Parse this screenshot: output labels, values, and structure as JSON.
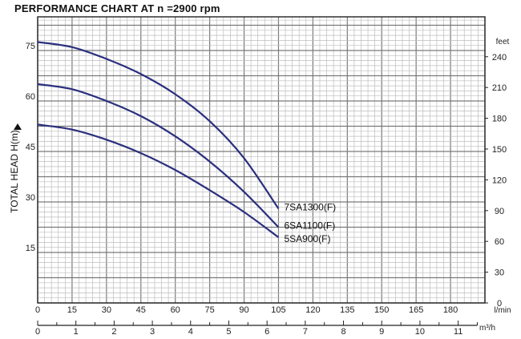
{
  "chart_data": {
    "type": "line",
    "title": "PERFORMANCE CHART AT n =2900 rpm",
    "ylabel": "TOTAL HEAD H(m)",
    "ylabel_right": "feet",
    "xlabel_unit": "l/min",
    "x2label_unit": "m³/h",
    "xlim": [
      0,
      195
    ],
    "ylim": [
      0,
      85
    ],
    "x_ticks": [
      0,
      15,
      30,
      45,
      60,
      75,
      90,
      105,
      120,
      135,
      150,
      165,
      180
    ],
    "y_ticks": [
      15,
      30,
      45,
      60,
      75
    ],
    "y_right_ticks": [
      0,
      30,
      60,
      90,
      120,
      150,
      180,
      210,
      240
    ],
    "x2_ticks": [
      0,
      1,
      2,
      3,
      4,
      5,
      6,
      7,
      8,
      9,
      10,
      11
    ],
    "grid": true,
    "series": [
      {
        "name": "7SA1300(F)",
        "color": "#2a2f7e",
        "x": [
          0,
          15,
          30,
          45,
          60,
          75,
          90,
          105
        ],
        "y": [
          77.5,
          76,
          72.5,
          68,
          62,
          54,
          43,
          28
        ]
      },
      {
        "name": "6SA1100(F)",
        "color": "#2a2f7e",
        "x": [
          0,
          15,
          30,
          45,
          60,
          75,
          90,
          105
        ],
        "y": [
          65,
          63.5,
          60,
          55.5,
          49.5,
          42,
          33,
          22.5
        ]
      },
      {
        "name": "5SA900(F)",
        "color": "#2a2f7e",
        "x": [
          0,
          15,
          30,
          45,
          60,
          75,
          90,
          105
        ],
        "y": [
          53,
          51.5,
          48.5,
          44.5,
          39.5,
          33.5,
          27,
          19.5
        ]
      }
    ]
  }
}
